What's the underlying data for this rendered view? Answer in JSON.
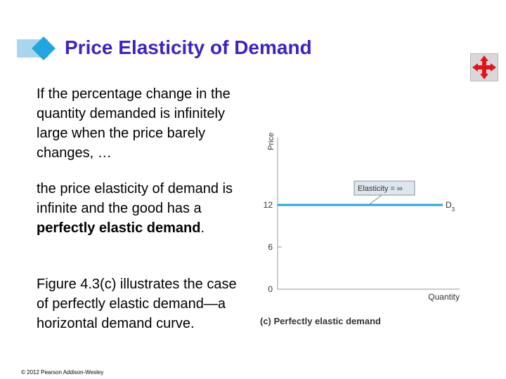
{
  "slide": {
    "title": "Price Elasticity of Demand",
    "paragraphs": {
      "p1": "If the percentage change in the quantity demanded is infinitely large when the price barely changes, …",
      "p2_prefix": "the price elasticity of demand is infinite and the good has a ",
      "p2_bold": "perfectly elastic demand",
      "p2_suffix": ".",
      "p3": "Figure 4.3(c) illustrates the case of perfectly elastic demand—a horizontal demand curve."
    },
    "copyright": "© 2012 Pearson Addison-Wesley",
    "nav_icon": "move-arrows-icon",
    "colors": {
      "title": "#3a24c4",
      "accent": "#22a6e0",
      "demand_line": "#22a6e0",
      "label_box": "#dde6ee"
    }
  },
  "chart_data": {
    "type": "line",
    "ylabel": "Price",
    "xlabel": "Quantity",
    "ylim": [
      0,
      15
    ],
    "y_ticks": [
      0,
      6,
      12
    ],
    "series": [
      {
        "name": "D3",
        "label_main": "D",
        "label_sub": "3",
        "x": [
          0,
          1
        ],
        "y": [
          12,
          12
        ]
      }
    ],
    "annotation": "Elasticity = ∞",
    "caption": "(c) Perfectly elastic demand"
  }
}
